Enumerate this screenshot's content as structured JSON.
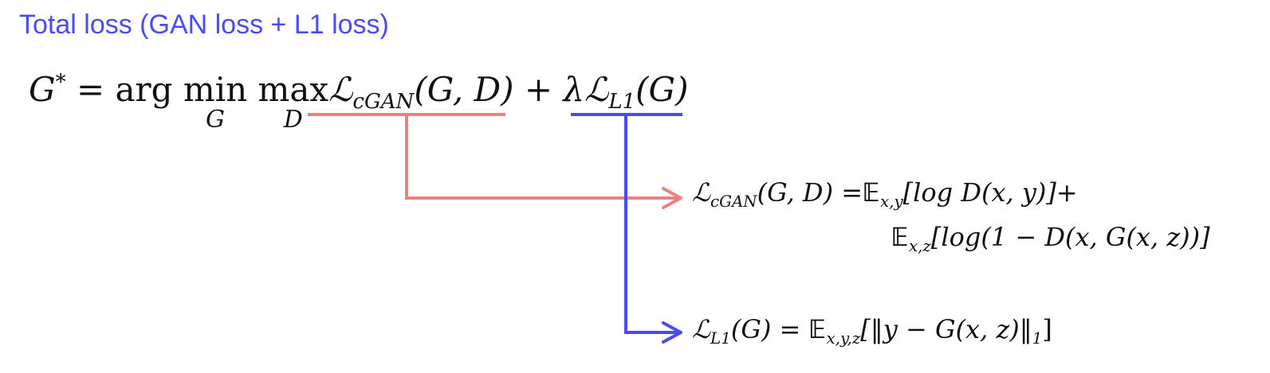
{
  "title": "Total loss (GAN loss + L1 loss)",
  "colors": {
    "title": "#4b4bf2",
    "cgan_connector": "#ef8080",
    "l1_connector": "#4b4bf2",
    "text": "#111111"
  },
  "main_equation": {
    "lhs": "G",
    "lhs_sup": "*",
    "equals": "=",
    "arg": "arg",
    "min_op": "min",
    "min_sub": "G",
    "max_op": "max",
    "max_sub": "D",
    "cgan_symbol": "ℒ",
    "cgan_sub": "cGAN",
    "cgan_args": "(G, D)",
    "plus": "+",
    "lambda": "λ",
    "l1_symbol": "ℒ",
    "l1_sub": "L1",
    "l1_args": "(G)"
  },
  "cgan_equation": {
    "symbol": "ℒ",
    "sub": "cGAN",
    "args": "(G, D)",
    "equals": "=",
    "expect1": "𝔼",
    "expect1_sub": "x,y",
    "term1": "[log D(x, y)]+",
    "expect2": "𝔼",
    "expect2_sub": "x,z",
    "term2": "[log(1 − D(x, G(x, z))]"
  },
  "l1_equation": {
    "symbol": "ℒ",
    "sub": "L1",
    "args": "(G)",
    "equals": "=",
    "expect": "𝔼",
    "expect_sub": "x,y,z",
    "term": "[‖y − G(x, z)‖",
    "norm_sub": "1",
    "close": "]"
  }
}
